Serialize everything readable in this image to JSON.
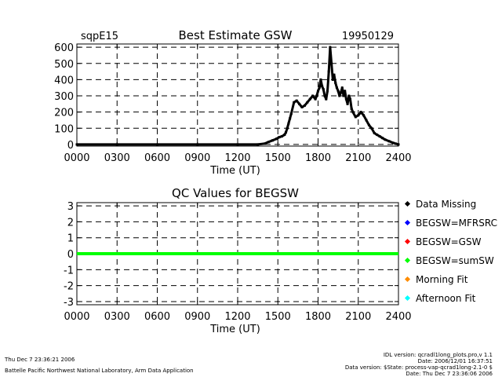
{
  "footer": {
    "left_line1": "Thu Dec  7 23:36:21 2006",
    "left_line2": "Battelle Pacific Northwest National Laboratory, Arm Data Application",
    "right_line1": "IDL version: qcradl1long_plots.pro,v 1.1",
    "right_line2": "Date: 2006/12/01 16:37:51",
    "right_line3": "Data version: $State: process-vap-qcrad1long-2.1-0 $",
    "right_line4": "Date: Thu Dec  7 23:36:06 2006"
  },
  "chart_data": [
    {
      "type": "scatter",
      "title": "Best Estimate GSW",
      "site_label": "sqpE15",
      "date_label": "19950129",
      "xlabel": "Time (UT)",
      "ylabel": "",
      "x_ticks": [
        "0000",
        "0300",
        "0600",
        "0900",
        "1200",
        "1500",
        "1800",
        "2100",
        "2400"
      ],
      "xlim": [
        0,
        24
      ],
      "y_ticks": [
        "0",
        "100",
        "200",
        "300",
        "400",
        "500",
        "600"
      ],
      "ylim": [
        -10,
        620
      ],
      "grid": true,
      "series": [
        {
          "color": "#000000",
          "x": [
            0,
            3,
            6,
            9,
            12,
            13.5,
            14,
            14.3,
            14.6,
            14.9,
            15.1,
            15.3,
            15.5,
            15.6,
            15.7,
            15.8,
            15.9,
            16.0,
            16.2,
            16.4,
            16.6,
            16.8,
            17.0,
            17.2,
            17.4,
            17.6,
            17.8,
            17.9,
            18.0,
            18.1,
            18.2,
            18.3,
            18.4,
            18.5,
            18.6,
            18.7,
            18.8,
            18.9,
            19.0,
            19.1,
            19.2,
            19.3,
            19.4,
            19.5,
            19.6,
            19.7,
            19.8,
            19.9,
            20.0,
            20.1,
            20.2,
            20.3,
            20.4,
            20.5,
            20.6,
            20.8,
            21.0,
            21.2,
            21.4,
            21.6,
            21.8,
            22.0,
            22.2,
            22.4,
            22.6,
            22.8,
            23.0,
            23.3,
            23.6,
            23.8,
            24.0
          ],
          "y": [
            0,
            0,
            0,
            0,
            0,
            0,
            5,
            15,
            25,
            35,
            45,
            50,
            60,
            75,
            100,
            130,
            160,
            190,
            260,
            270,
            250,
            230,
            240,
            260,
            280,
            300,
            280,
            300,
            330,
            350,
            400,
            360,
            340,
            300,
            280,
            330,
            450,
            600,
            500,
            400,
            430,
            380,
            350,
            330,
            300,
            320,
            350,
            300,
            330,
            280,
            250,
            300,
            280,
            220,
            200,
            170,
            180,
            200,
            180,
            150,
            120,
            100,
            70,
            60,
            50,
            40,
            30,
            20,
            10,
            5,
            0
          ]
        }
      ]
    },
    {
      "type": "scatter",
      "title": "QC Values for BEGSW",
      "xlabel": "Time (UT)",
      "x_ticks": [
        "0000",
        "0300",
        "0600",
        "0900",
        "1200",
        "1500",
        "1800",
        "2100",
        "2400"
      ],
      "xlim": [
        0,
        24
      ],
      "y_ticks": [
        "-3",
        "-2",
        "-1",
        "0",
        "1",
        "2",
        "3"
      ],
      "ylim": [
        -3.2,
        3.2
      ],
      "grid": true,
      "legend_position": "right",
      "series": [
        {
          "name": "Data Missing",
          "color": "#000000",
          "x": [],
          "y": []
        },
        {
          "name": "BEGSW=MFRSRC",
          "color": "#0000ff",
          "x": [],
          "y": []
        },
        {
          "name": "BEGSW=GSW",
          "color": "#ff0000",
          "x": [],
          "y": []
        },
        {
          "name": "BEGSW=sumSW",
          "color": "#00ff00",
          "x": [
            0,
            24
          ],
          "y": [
            0,
            0
          ]
        },
        {
          "name": "Morning Fit",
          "color": "#ff8c00",
          "x": [],
          "y": []
        },
        {
          "name": "Afternoon Fit",
          "color": "#00ffff",
          "x": [],
          "y": []
        }
      ]
    }
  ]
}
